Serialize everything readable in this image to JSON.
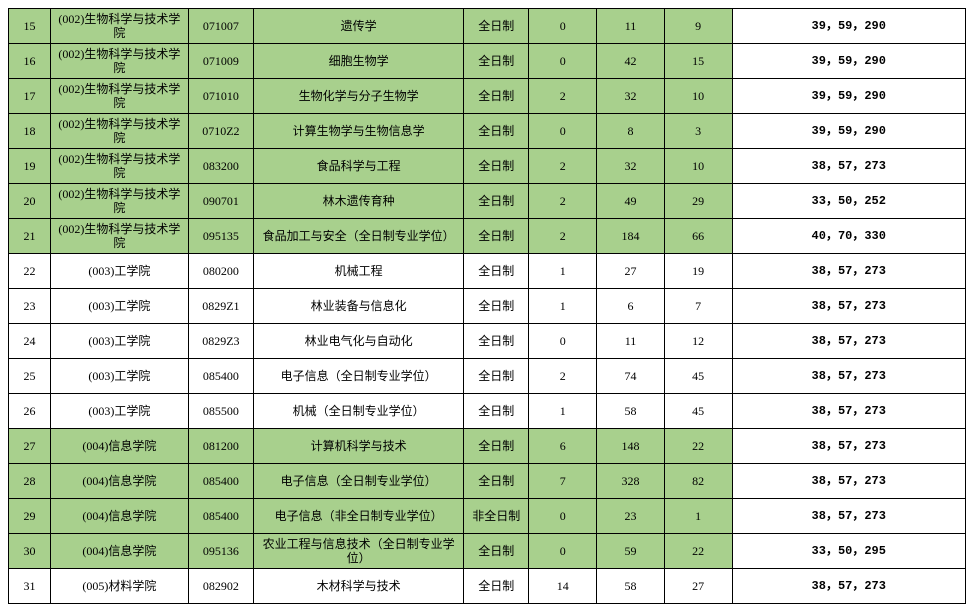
{
  "colors": {
    "highlight_row": "#a8d08d",
    "plain_row": "#ffffff",
    "border": "#000000"
  },
  "columns": [
    "idx",
    "dept",
    "code",
    "major",
    "mode",
    "n1",
    "n2",
    "n3",
    "score"
  ],
  "rows": [
    {
      "hl": true,
      "idx": "15",
      "dept": "(002)生物科学与技术学院",
      "code": "071007",
      "major": "遗传学",
      "mode": "全日制",
      "n1": "0",
      "n2": "11",
      "n3": "9",
      "score": "39，59，290"
    },
    {
      "hl": true,
      "idx": "16",
      "dept": "(002)生物科学与技术学院",
      "code": "071009",
      "major": "细胞生物学",
      "mode": "全日制",
      "n1": "0",
      "n2": "42",
      "n3": "15",
      "score": "39，59，290"
    },
    {
      "hl": true,
      "idx": "17",
      "dept": "(002)生物科学与技术学院",
      "code": "071010",
      "major": "生物化学与分子生物学",
      "mode": "全日制",
      "n1": "2",
      "n2": "32",
      "n3": "10",
      "score": "39，59，290"
    },
    {
      "hl": true,
      "idx": "18",
      "dept": "(002)生物科学与技术学院",
      "code": "0710Z2",
      "major": "计算生物学与生物信息学",
      "mode": "全日制",
      "n1": "0",
      "n2": "8",
      "n3": "3",
      "score": "39，59，290"
    },
    {
      "hl": true,
      "idx": "19",
      "dept": "(002)生物科学与技术学院",
      "code": "083200",
      "major": "食品科学与工程",
      "mode": "全日制",
      "n1": "2",
      "n2": "32",
      "n3": "10",
      "score": "38，57，273"
    },
    {
      "hl": true,
      "idx": "20",
      "dept": "(002)生物科学与技术学院",
      "code": "090701",
      "major": "林木遗传育种",
      "mode": "全日制",
      "n1": "2",
      "n2": "49",
      "n3": "29",
      "score": "33，50，252"
    },
    {
      "hl": true,
      "idx": "21",
      "dept": "(002)生物科学与技术学院",
      "code": "095135",
      "major": "食品加工与安全（全日制专业学位）",
      "mode": "全日制",
      "n1": "2",
      "n2": "184",
      "n3": "66",
      "score": "40，70，330"
    },
    {
      "hl": false,
      "idx": "22",
      "dept": "(003)工学院",
      "code": "080200",
      "major": "机械工程",
      "mode": "全日制",
      "n1": "1",
      "n2": "27",
      "n3": "19",
      "score": "38，57，273"
    },
    {
      "hl": false,
      "idx": "23",
      "dept": "(003)工学院",
      "code": "0829Z1",
      "major": "林业装备与信息化",
      "mode": "全日制",
      "n1": "1",
      "n2": "6",
      "n3": "7",
      "score": "38，57，273"
    },
    {
      "hl": false,
      "idx": "24",
      "dept": "(003)工学院",
      "code": "0829Z3",
      "major": "林业电气化与自动化",
      "mode": "全日制",
      "n1": "0",
      "n2": "11",
      "n3": "12",
      "score": "38，57，273"
    },
    {
      "hl": false,
      "idx": "25",
      "dept": "(003)工学院",
      "code": "085400",
      "major": "电子信息（全日制专业学位）",
      "mode": "全日制",
      "n1": "2",
      "n2": "74",
      "n3": "45",
      "score": "38，57，273"
    },
    {
      "hl": false,
      "idx": "26",
      "dept": "(003)工学院",
      "code": "085500",
      "major": "机械（全日制专业学位）",
      "mode": "全日制",
      "n1": "1",
      "n2": "58",
      "n3": "45",
      "score": "38，57，273"
    },
    {
      "hl": true,
      "idx": "27",
      "dept": "(004)信息学院",
      "code": "081200",
      "major": "计算机科学与技术",
      "mode": "全日制",
      "n1": "6",
      "n2": "148",
      "n3": "22",
      "score": "38，57，273"
    },
    {
      "hl": true,
      "idx": "28",
      "dept": "(004)信息学院",
      "code": "085400",
      "major": "电子信息（全日制专业学位）",
      "mode": "全日制",
      "n1": "7",
      "n2": "328",
      "n3": "82",
      "score": "38，57，273"
    },
    {
      "hl": true,
      "idx": "29",
      "dept": "(004)信息学院",
      "code": "085400",
      "major": "电子信息（非全日制专业学位）",
      "mode": "非全日制",
      "n1": "0",
      "n2": "23",
      "n3": "1",
      "score": "38，57，273"
    },
    {
      "hl": true,
      "idx": "30",
      "dept": "(004)信息学院",
      "code": "095136",
      "major": "农业工程与信息技术（全日制专业学位）",
      "mode": "全日制",
      "n1": "0",
      "n2": "59",
      "n3": "22",
      "score": "33，50，295"
    },
    {
      "hl": false,
      "idx": "31",
      "dept": "(005)材料学院",
      "code": "082902",
      "major": "木材科学与技术",
      "mode": "全日制",
      "n1": "14",
      "n2": "58",
      "n3": "27",
      "score": "38，57，273"
    }
  ]
}
